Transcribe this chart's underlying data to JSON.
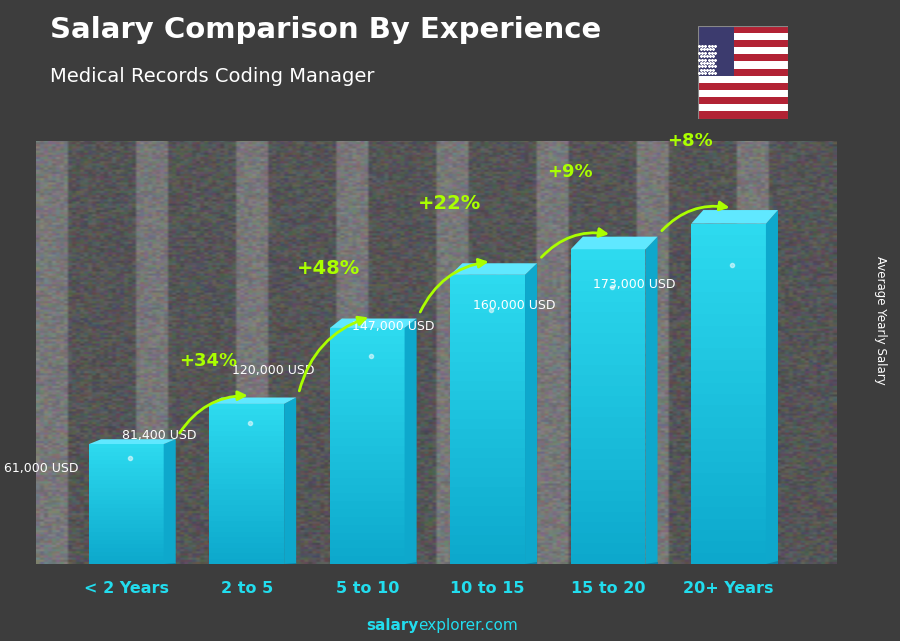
{
  "title": "Salary Comparison By Experience",
  "subtitle": "Medical Records Coding Manager",
  "categories": [
    "< 2 Years",
    "2 to 5",
    "5 to 10",
    "10 to 15",
    "15 to 20",
    "20+ Years"
  ],
  "values": [
    61000,
    81400,
    120000,
    147000,
    160000,
    173000
  ],
  "value_labels": [
    "61,000 USD",
    "81,400 USD",
    "120,000 USD",
    "147,000 USD",
    "160,000 USD",
    "173,000 USD"
  ],
  "pct_labels": [
    "+34%",
    "+48%",
    "+22%",
    "+9%",
    "+8%"
  ],
  "bar_face_color": "#1ec8e8",
  "bar_top_color": "#55dff5",
  "bar_side_color": "#0ea8cc",
  "bar_dark_color": "#0d85a8",
  "pct_color": "#aaff00",
  "val_label_color": "#ffffff",
  "cat_label_color": "#22ddee",
  "ylabel": "Average Yearly Salary",
  "footer_bold": "salary",
  "footer_rest": "explorer.com",
  "bg_dark": "#3a3a4a",
  "bar_width": 0.62,
  "ylim": [
    0,
    215000
  ],
  "fig_width": 9.0,
  "fig_height": 6.41
}
